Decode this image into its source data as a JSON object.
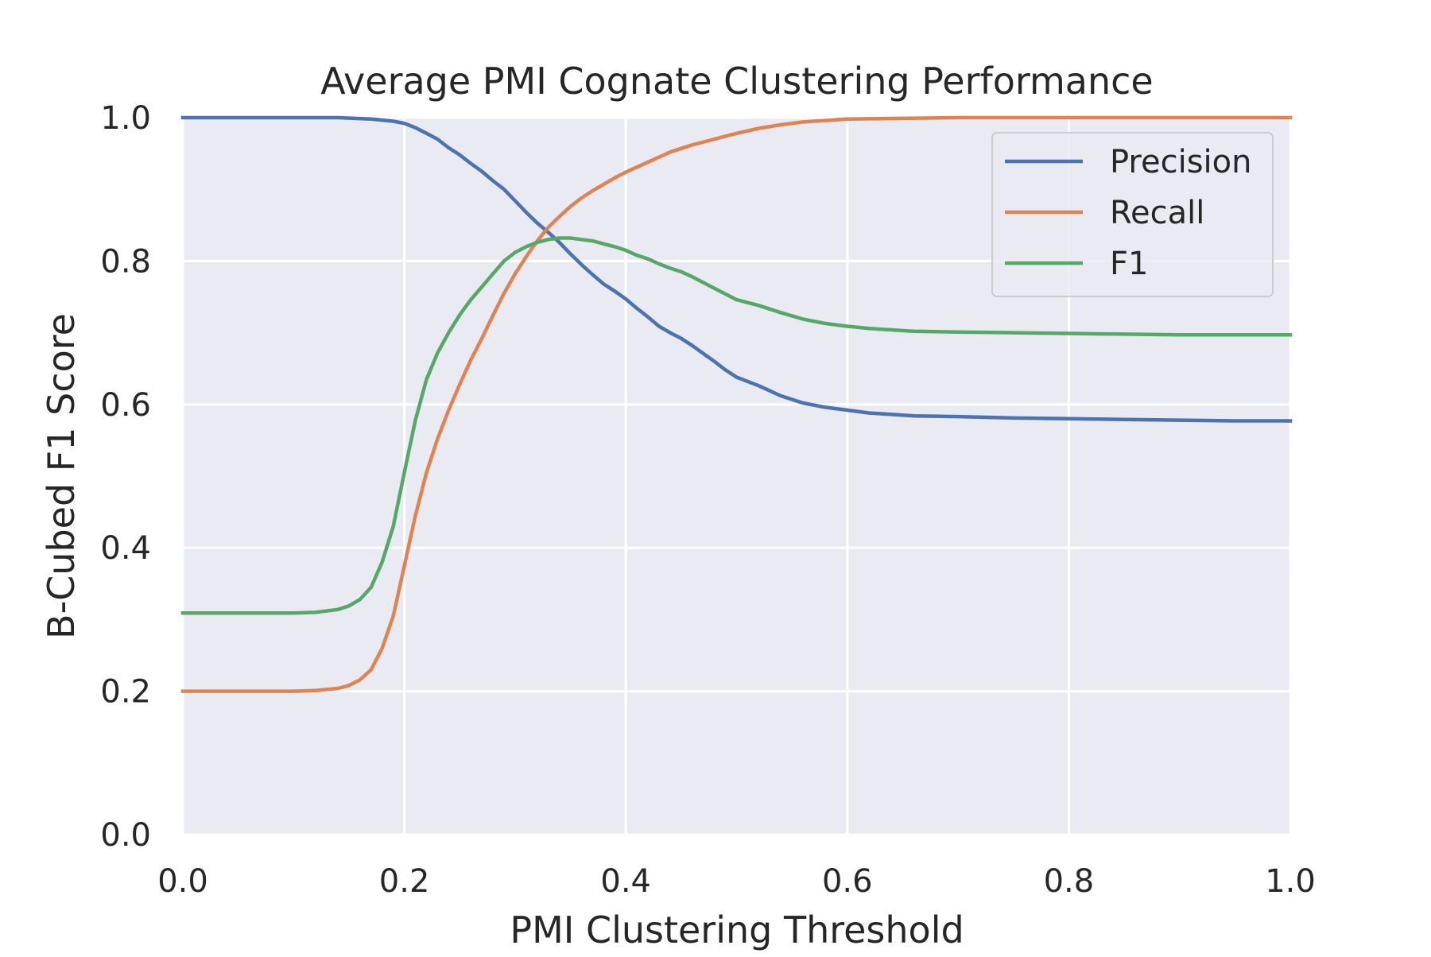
{
  "chart_data": {
    "type": "line",
    "title": "Average PMI Cognate Clustering Performance",
    "xlabel": "PMI Clustering Threshold",
    "ylabel": "B-Cubed F1 Score",
    "xlim": [
      0.0,
      1.0
    ],
    "ylim": [
      0.0,
      1.0
    ],
    "x_ticks": [
      "0.0",
      "0.2",
      "0.4",
      "0.6",
      "0.8",
      "1.0"
    ],
    "y_ticks": [
      "0.0",
      "0.2",
      "0.4",
      "0.6",
      "0.8",
      "1.0"
    ],
    "grid": true,
    "legend_position": "top-right",
    "series": [
      {
        "name": "Precision",
        "color": "#4c72b0",
        "points": [
          [
            0.0,
            1.0
          ],
          [
            0.1,
            1.0
          ],
          [
            0.14,
            1.0
          ],
          [
            0.17,
            0.998
          ],
          [
            0.19,
            0.995
          ],
          [
            0.2,
            0.992
          ],
          [
            0.21,
            0.986
          ],
          [
            0.22,
            0.978
          ],
          [
            0.23,
            0.97
          ],
          [
            0.24,
            0.958
          ],
          [
            0.25,
            0.948
          ],
          [
            0.26,
            0.936
          ],
          [
            0.27,
            0.925
          ],
          [
            0.28,
            0.912
          ],
          [
            0.29,
            0.9
          ],
          [
            0.3,
            0.884
          ],
          [
            0.31,
            0.868
          ],
          [
            0.32,
            0.853
          ],
          [
            0.33,
            0.84
          ],
          [
            0.34,
            0.826
          ],
          [
            0.35,
            0.81
          ],
          [
            0.36,
            0.795
          ],
          [
            0.37,
            0.781
          ],
          [
            0.38,
            0.768
          ],
          [
            0.39,
            0.758
          ],
          [
            0.4,
            0.747
          ],
          [
            0.41,
            0.734
          ],
          [
            0.42,
            0.722
          ],
          [
            0.43,
            0.709
          ],
          [
            0.44,
            0.7
          ],
          [
            0.45,
            0.692
          ],
          [
            0.46,
            0.682
          ],
          [
            0.47,
            0.671
          ],
          [
            0.48,
            0.66
          ],
          [
            0.49,
            0.648
          ],
          [
            0.5,
            0.638
          ],
          [
            0.52,
            0.626
          ],
          [
            0.54,
            0.612
          ],
          [
            0.56,
            0.602
          ],
          [
            0.58,
            0.596
          ],
          [
            0.6,
            0.592
          ],
          [
            0.62,
            0.588
          ],
          [
            0.64,
            0.586
          ],
          [
            0.66,
            0.584
          ],
          [
            0.7,
            0.583
          ],
          [
            0.75,
            0.581
          ],
          [
            0.8,
            0.58
          ],
          [
            0.85,
            0.579
          ],
          [
            0.9,
            0.578
          ],
          [
            0.95,
            0.577
          ],
          [
            1.0,
            0.577
          ]
        ]
      },
      {
        "name": "Recall",
        "color": "#dd8452",
        "points": [
          [
            0.0,
            0.2
          ],
          [
            0.1,
            0.2
          ],
          [
            0.12,
            0.201
          ],
          [
            0.14,
            0.204
          ],
          [
            0.15,
            0.208
          ],
          [
            0.16,
            0.216
          ],
          [
            0.17,
            0.23
          ],
          [
            0.18,
            0.26
          ],
          [
            0.19,
            0.305
          ],
          [
            0.2,
            0.375
          ],
          [
            0.21,
            0.445
          ],
          [
            0.22,
            0.505
          ],
          [
            0.23,
            0.552
          ],
          [
            0.24,
            0.592
          ],
          [
            0.25,
            0.628
          ],
          [
            0.26,
            0.662
          ],
          [
            0.27,
            0.692
          ],
          [
            0.28,
            0.724
          ],
          [
            0.29,
            0.755
          ],
          [
            0.3,
            0.782
          ],
          [
            0.31,
            0.806
          ],
          [
            0.32,
            0.828
          ],
          [
            0.33,
            0.847
          ],
          [
            0.34,
            0.862
          ],
          [
            0.35,
            0.876
          ],
          [
            0.36,
            0.888
          ],
          [
            0.37,
            0.898
          ],
          [
            0.38,
            0.907
          ],
          [
            0.39,
            0.916
          ],
          [
            0.4,
            0.924
          ],
          [
            0.42,
            0.938
          ],
          [
            0.44,
            0.952
          ],
          [
            0.46,
            0.962
          ],
          [
            0.48,
            0.97
          ],
          [
            0.5,
            0.978
          ],
          [
            0.52,
            0.985
          ],
          [
            0.54,
            0.99
          ],
          [
            0.56,
            0.994
          ],
          [
            0.58,
            0.996
          ],
          [
            0.6,
            0.998
          ],
          [
            0.65,
            0.999
          ],
          [
            0.7,
            1.0
          ],
          [
            0.8,
            1.0
          ],
          [
            1.0,
            1.0
          ]
        ]
      },
      {
        "name": "F1",
        "color": "#55a868",
        "points": [
          [
            0.0,
            0.309
          ],
          [
            0.1,
            0.309
          ],
          [
            0.12,
            0.31
          ],
          [
            0.14,
            0.314
          ],
          [
            0.15,
            0.319
          ],
          [
            0.16,
            0.328
          ],
          [
            0.17,
            0.345
          ],
          [
            0.18,
            0.38
          ],
          [
            0.19,
            0.43
          ],
          [
            0.2,
            0.505
          ],
          [
            0.21,
            0.578
          ],
          [
            0.22,
            0.635
          ],
          [
            0.23,
            0.672
          ],
          [
            0.24,
            0.7
          ],
          [
            0.25,
            0.725
          ],
          [
            0.26,
            0.746
          ],
          [
            0.27,
            0.764
          ],
          [
            0.28,
            0.782
          ],
          [
            0.29,
            0.8
          ],
          [
            0.3,
            0.812
          ],
          [
            0.31,
            0.82
          ],
          [
            0.32,
            0.826
          ],
          [
            0.33,
            0.83
          ],
          [
            0.34,
            0.832
          ],
          [
            0.35,
            0.832
          ],
          [
            0.36,
            0.83
          ],
          [
            0.37,
            0.828
          ],
          [
            0.38,
            0.824
          ],
          [
            0.39,
            0.82
          ],
          [
            0.4,
            0.815
          ],
          [
            0.41,
            0.808
          ],
          [
            0.42,
            0.803
          ],
          [
            0.43,
            0.796
          ],
          [
            0.44,
            0.79
          ],
          [
            0.45,
            0.785
          ],
          [
            0.46,
            0.778
          ],
          [
            0.47,
            0.77
          ],
          [
            0.48,
            0.762
          ],
          [
            0.49,
            0.754
          ],
          [
            0.5,
            0.746
          ],
          [
            0.52,
            0.738
          ],
          [
            0.54,
            0.728
          ],
          [
            0.56,
            0.719
          ],
          [
            0.58,
            0.713
          ],
          [
            0.6,
            0.709
          ],
          [
            0.62,
            0.706
          ],
          [
            0.64,
            0.704
          ],
          [
            0.66,
            0.702
          ],
          [
            0.7,
            0.701
          ],
          [
            0.75,
            0.7
          ],
          [
            0.8,
            0.699
          ],
          [
            0.85,
            0.698
          ],
          [
            0.9,
            0.697
          ],
          [
            0.95,
            0.697
          ],
          [
            1.0,
            0.697
          ]
        ]
      }
    ]
  }
}
